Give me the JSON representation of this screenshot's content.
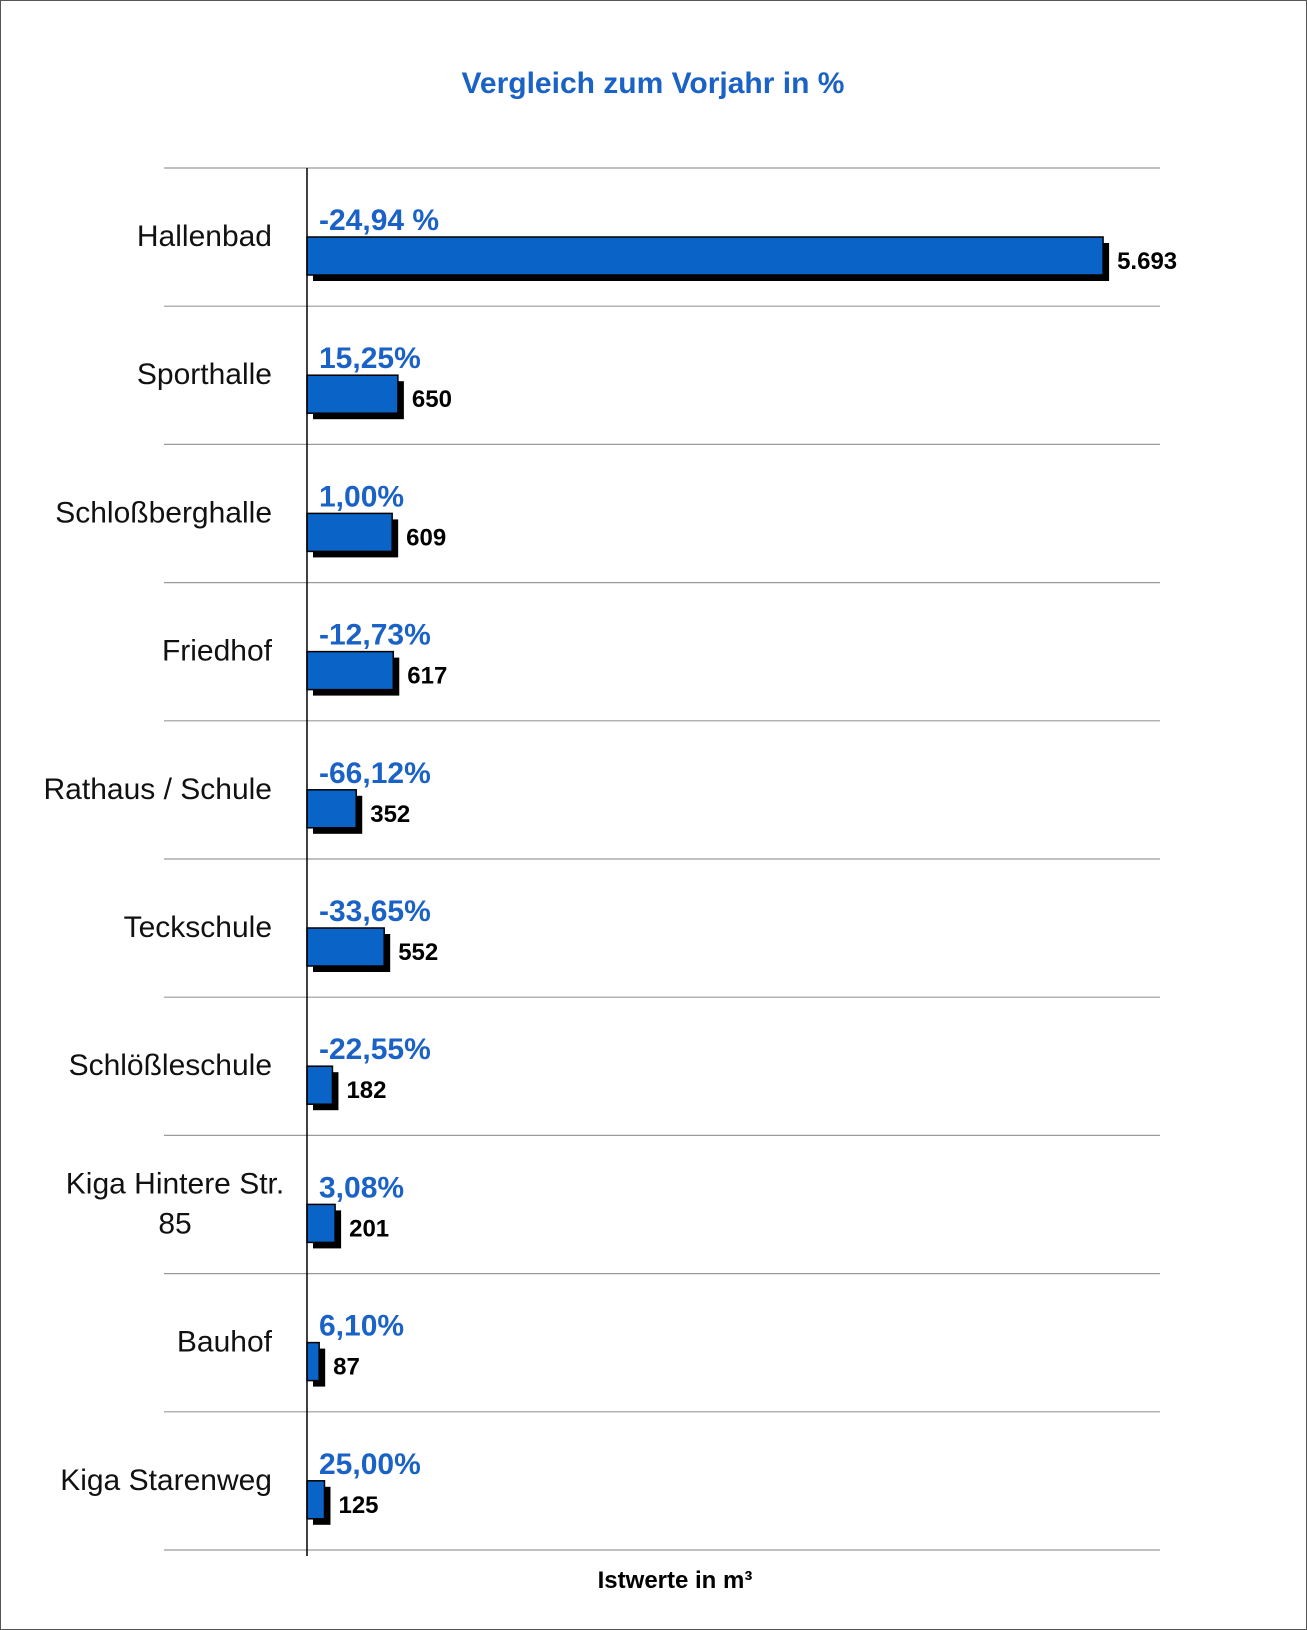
{
  "chart_data": {
    "type": "bar",
    "orientation": "horizontal",
    "title": "Vergleich zum Vorjahr in %",
    "xlabel": "Istwerte in m³",
    "ylabel": "",
    "grid": true,
    "xlim": [
      0,
      6100
    ],
    "categories": [
      "Hallenbad",
      "Sporthalle",
      "Schloßberghalle",
      "Friedhof",
      "Rathaus / Schule",
      "Teckschule",
      "Schlößleschule",
      "Kiga Hintere Str. 85",
      "Bauhof",
      "Kiga Starenweg"
    ],
    "category_lines": [
      [
        "Hallenbad"
      ],
      [
        "Sporthalle"
      ],
      [
        "Schloßberghalle"
      ],
      [
        "Friedhof"
      ],
      [
        "Rathaus / Schule"
      ],
      [
        "Teckschule"
      ],
      [
        "Schlößleschule"
      ],
      [
        "Kiga Hintere Str.",
        "85"
      ],
      [
        "Bauhof"
      ],
      [
        "Kiga Starenweg"
      ]
    ],
    "values": [
      5693,
      650,
      609,
      617,
      352,
      552,
      182,
      201,
      87,
      125
    ],
    "value_labels": [
      "5.693",
      "650",
      "609",
      "617",
      "352",
      "552",
      "182",
      "201",
      "87",
      "125"
    ],
    "change_labels": [
      "-24,94 %",
      "15,25%",
      "1,00%",
      "-12,73%",
      "-66,12%",
      "-33,65%",
      "-22,55%",
      "3,08%",
      "6,10%",
      "25,00%"
    ],
    "colors": {
      "bar": "#0a64c8",
      "bar_shadow": "#000000",
      "title": "#1a62c6",
      "change_label": "#1a62c6",
      "grid": "#9a9a9a"
    }
  }
}
